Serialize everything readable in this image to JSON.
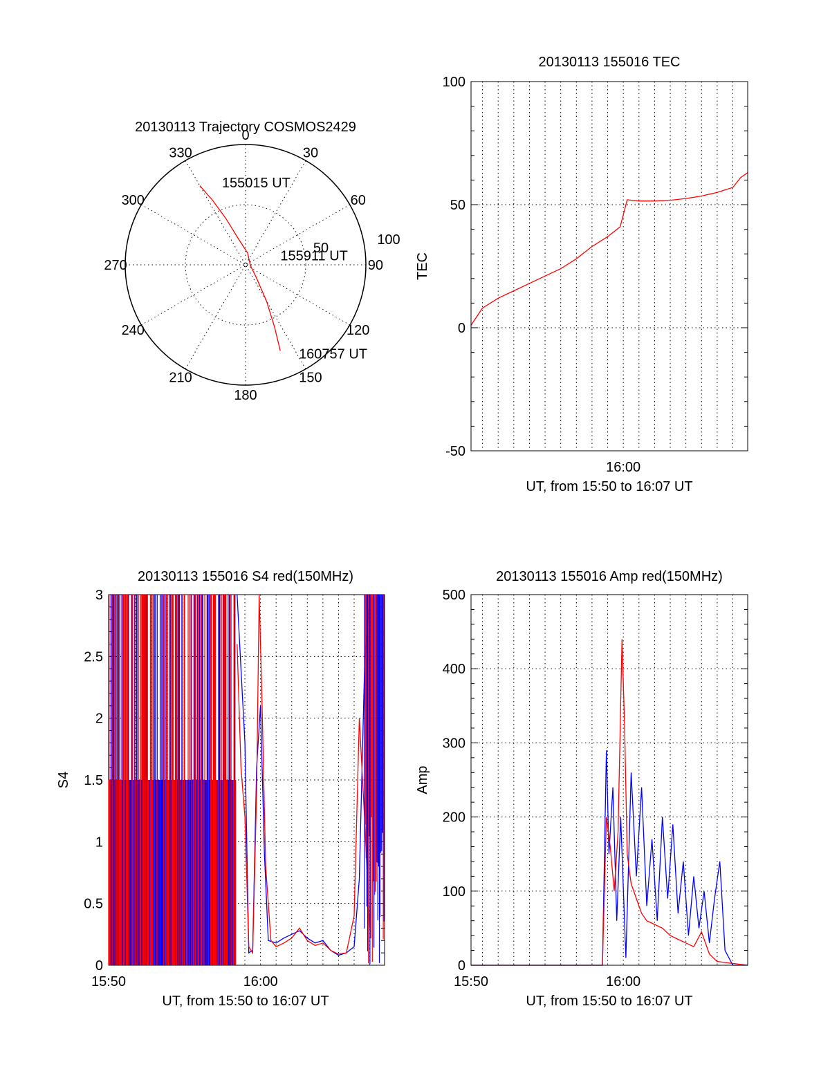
{
  "chart_data": [
    {
      "id": "trajectory",
      "type": "polar",
      "title": "20130113 Trajectory COSMOS2429",
      "angle_labels": [
        "0",
        "30",
        "60",
        "90",
        "120",
        "150",
        "180",
        "210",
        "240",
        "270",
        "300",
        "330"
      ],
      "radius_labels": [
        "50",
        "100"
      ],
      "rlim": [
        0,
        100
      ],
      "grid": true,
      "series": [
        {
          "color": "#ff0000",
          "points": [
            {
              "az": 330,
              "r": 76
            },
            {
              "az": 333,
              "r": 60
            },
            {
              "az": 337,
              "r": 42
            },
            {
              "az": 345,
              "r": 22
            },
            {
              "az": 10,
              "r": 10
            },
            {
              "az": 95,
              "r": 4
            },
            {
              "az": 140,
              "r": 14
            },
            {
              "az": 150,
              "r": 35
            },
            {
              "az": 155,
              "r": 57
            },
            {
              "az": 158,
              "r": 77
            }
          ]
        }
      ],
      "annotations": [
        {
          "text": "155015 UT",
          "az": 344,
          "r": 71
        },
        {
          "text": "155911 UT",
          "az": 75,
          "r": 30
        },
        {
          "text": "160757 UT",
          "az": 149,
          "r": 86
        }
      ]
    },
    {
      "id": "tec",
      "type": "line",
      "title": "20130113 155016 TEC",
      "xlabel": "UT, from 15:50 to 16:07 UT",
      "ylabel": "TEC",
      "xlim": [
        "15:50:16",
        "16:07:57"
      ],
      "ylim": [
        -50,
        100
      ],
      "yticks": [
        -50,
        0,
        50,
        100
      ],
      "xtick_labels": [
        "16:00"
      ],
      "grid": true,
      "series": [
        {
          "color": "#ff0000",
          "x": [
            "15:50:16",
            "15:51:00",
            "15:52:00",
            "15:53:00",
            "15:54:00",
            "15:55:00",
            "15:56:00",
            "15:57:00",
            "15:58:00",
            "15:59:00",
            "15:59:48",
            "16:00:15",
            "16:01:00",
            "16:02:00",
            "16:03:00",
            "16:04:00",
            "16:05:00",
            "16:06:00",
            "16:07:00",
            "16:07:30",
            "16:07:57"
          ],
          "y": [
            1,
            8,
            12,
            15,
            18,
            21,
            24,
            28,
            33,
            37,
            41,
            52,
            51.5,
            51.5,
            51.8,
            52.5,
            53.5,
            55,
            57,
            61,
            63
          ]
        }
      ]
    },
    {
      "id": "s4",
      "type": "line",
      "title": "20130113 155016 S4 red(150MHz)",
      "xlabel": "UT, from 15:50 to 16:07 UT",
      "ylabel": "S4",
      "xlim": [
        "15:50:16",
        "16:07:57"
      ],
      "ylim": [
        0,
        3
      ],
      "yticks": [
        0,
        0.5,
        1,
        1.5,
        2,
        2.5,
        3
      ],
      "xtick_labels": [
        "15:50",
        "16:00"
      ],
      "grid": true,
      "series": [
        {
          "color": "#0000ff",
          "x": [
            "15:58:30",
            "15:58:45",
            "15:59:00",
            "15:59:15",
            "15:59:30",
            "15:59:45",
            "16:00:00",
            "16:00:15",
            "16:00:30",
            "16:01:00",
            "16:01:30",
            "16:02:00",
            "16:02:30",
            "16:03:00",
            "16:03:30",
            "16:04:00",
            "16:04:30",
            "16:05:00",
            "16:05:30",
            "16:06:00",
            "16:06:20",
            "16:06:40",
            "16:07:00"
          ],
          "y": [
            3.0,
            2.4,
            1.8,
            0.1,
            0.12,
            1.6,
            2.1,
            0.9,
            0.2,
            0.18,
            0.22,
            0.25,
            0.28,
            0.22,
            0.18,
            0.2,
            0.12,
            0.08,
            0.1,
            0.15,
            0.7,
            2.4,
            3.0
          ]
        },
        {
          "color": "#ff0000",
          "x": [
            "15:58:30",
            "15:58:45",
            "15:59:00",
            "15:59:15",
            "15:59:30",
            "15:59:45",
            "15:59:55",
            "16:00:05",
            "16:00:20",
            "16:00:40",
            "16:01:00",
            "16:01:30",
            "16:02:00",
            "16:02:30",
            "16:03:00",
            "16:03:30",
            "16:04:00",
            "16:04:30",
            "16:05:00",
            "16:05:30",
            "16:06:00",
            "16:06:20",
            "16:06:40",
            "16:07:00"
          ],
          "y": [
            2.6,
            1.6,
            1.2,
            0.15,
            0.1,
            1.4,
            3.0,
            2.2,
            0.8,
            0.2,
            0.15,
            0.18,
            0.22,
            0.3,
            0.2,
            0.16,
            0.18,
            0.12,
            0.09,
            0.1,
            0.4,
            2.0,
            1.2,
            0.3
          ]
        }
      ]
    },
    {
      "id": "amp",
      "type": "line",
      "title": "20130113 155016 Amp red(150MHz)",
      "xlabel": "UT, from 15:50 to 16:07 UT",
      "ylabel": "Amp",
      "xlim": [
        "15:50:16",
        "16:07:57"
      ],
      "ylim": [
        0,
        500
      ],
      "yticks": [
        0,
        100,
        200,
        300,
        400,
        500
      ],
      "xtick_labels": [
        "15:50",
        "16:00"
      ],
      "grid": true,
      "series": [
        {
          "color": "#0000ff",
          "x": [
            "15:50:16",
            "15:58:40",
            "15:58:55",
            "15:59:05",
            "15:59:20",
            "15:59:35",
            "15:59:50",
            "16:00:10",
            "16:00:30",
            "16:00:50",
            "16:01:10",
            "16:01:30",
            "16:01:50",
            "16:02:10",
            "16:02:30",
            "16:02:50",
            "16:03:10",
            "16:03:30",
            "16:03:50",
            "16:04:10",
            "16:04:30",
            "16:04:50",
            "16:05:10",
            "16:05:30",
            "16:05:50",
            "16:06:10",
            "16:06:30",
            "16:07:00",
            "16:07:57"
          ],
          "y": [
            0,
            0,
            290,
            150,
            240,
            60,
            200,
            10,
            260,
            120,
            240,
            80,
            170,
            60,
            200,
            90,
            190,
            70,
            140,
            40,
            120,
            50,
            100,
            30,
            90,
            140,
            20,
            0,
            0
          ]
        },
        {
          "color": "#ff0000",
          "x": [
            "15:50:16",
            "15:58:40",
            "15:58:55",
            "15:59:10",
            "15:59:25",
            "15:59:40",
            "15:59:55",
            "16:00:05",
            "16:00:15",
            "16:00:30",
            "16:00:50",
            "16:01:10",
            "16:01:30",
            "16:02:00",
            "16:02:30",
            "16:03:00",
            "16:03:30",
            "16:04:00",
            "16:04:30",
            "16:05:00",
            "16:05:30",
            "16:06:00",
            "16:07:57"
          ],
          "y": [
            0,
            0,
            200,
            160,
            100,
            180,
            440,
            320,
            150,
            110,
            90,
            70,
            60,
            55,
            50,
            40,
            35,
            30,
            25,
            45,
            15,
            5,
            0
          ]
        }
      ]
    }
  ]
}
